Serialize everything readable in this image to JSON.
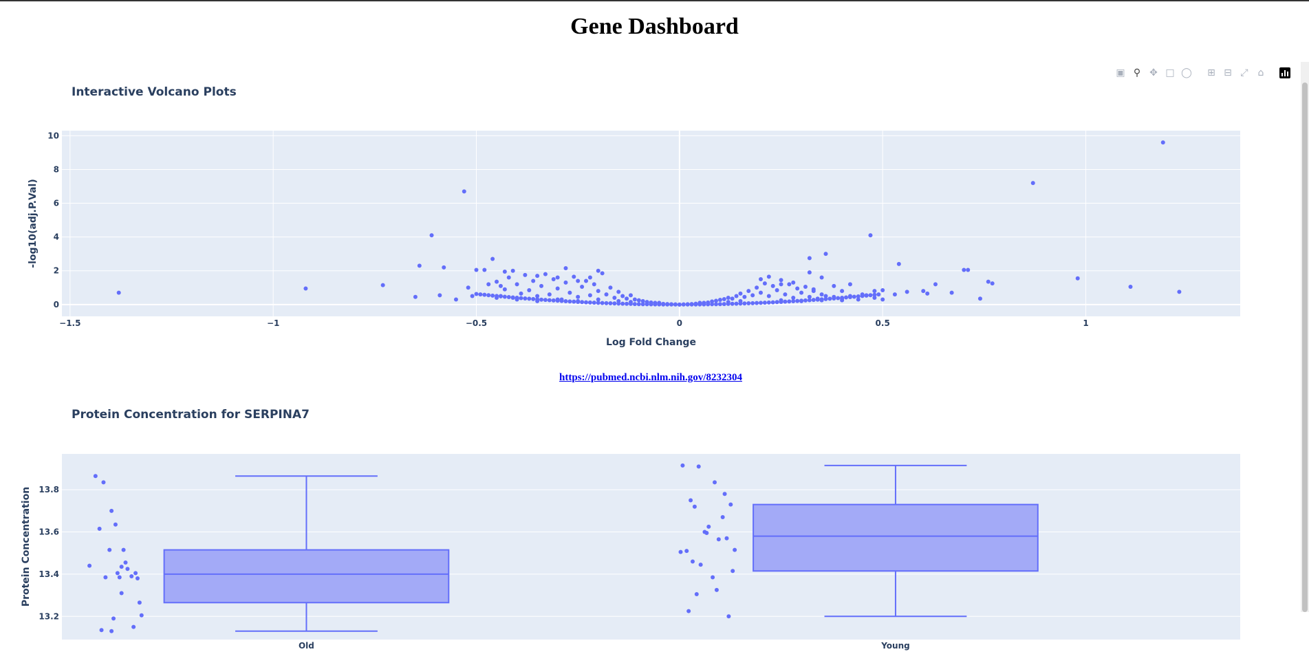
{
  "page": {
    "title": "Gene Dashboard",
    "link": "https://pubmed.ncbi.nlm.nih.gov/8232304"
  },
  "modebar": {
    "icons": [
      "camera-icon",
      "zoom-icon",
      "pan-icon",
      "box-select-icon",
      "lasso-icon",
      "zoom-in-icon",
      "zoom-out-icon",
      "autoscale-icon",
      "reset-axes-icon",
      "plotly-logo-icon"
    ]
  },
  "colors": {
    "marker": "#636efa",
    "plot_bg": "#e5ecf6",
    "box_fill": "#a3aaf7",
    "text": "#2a3f5f"
  },
  "chart_data": [
    {
      "type": "scatter",
      "title": "Interactive Volcano Plots",
      "xlabel": "Log Fold Change",
      "ylabel": "-log10(adj.P.Val)",
      "xlim": [
        -1.52,
        1.38
      ],
      "ylim": [
        -0.7,
        10.3
      ],
      "xticks": [
        -1.5,
        -1,
        -0.5,
        0,
        0.5,
        1
      ],
      "xtick_labels": [
        "−1.5",
        "−1",
        "−0.5",
        "0",
        "0.5",
        "1"
      ],
      "yticks": [
        0,
        2,
        4,
        6,
        8,
        10
      ],
      "ytick_labels": [
        "0",
        "2",
        "4",
        "6",
        "8",
        "10"
      ],
      "grid": true,
      "x": [
        -1.38,
        -0.92,
        -0.73,
        -0.65,
        -0.64,
        -0.61,
        -0.59,
        -0.58,
        -0.55,
        -0.53,
        -0.52,
        -0.51,
        -0.5,
        -0.48,
        -0.47,
        -0.46,
        -0.45,
        -0.44,
        -0.43,
        -0.41,
        -0.4,
        -0.35,
        -0.3,
        -0.28,
        -0.25,
        -0.22,
        -0.2,
        0.2,
        0.22,
        0.25,
        0.28,
        0.32,
        0.32,
        0.33,
        0.35,
        0.36,
        0.38,
        0.4,
        0.42,
        0.45,
        0.47,
        0.48,
        0.5,
        0.53,
        0.54,
        0.56,
        0.6,
        0.61,
        0.63,
        0.67,
        0.7,
        0.71,
        0.74,
        0.76,
        0.77,
        0.87,
        0.98,
        1.11,
        1.19,
        1.23
      ],
      "y": [
        0.7,
        0.95,
        1.15,
        0.45,
        2.3,
        4.1,
        0.55,
        2.2,
        0.3,
        6.7,
        1.0,
        0.5,
        2.05,
        2.05,
        1.2,
        2.7,
        0.4,
        1.1,
        1.95,
        2.0,
        0.35,
        1.7,
        1.6,
        2.15,
        1.4,
        1.6,
        2.0,
        1.5,
        1.65,
        1.2,
        1.3,
        2.75,
        1.9,
        0.9,
        1.6,
        3.0,
        1.1,
        0.8,
        1.2,
        0.6,
        4.1,
        0.8,
        0.85,
        0.6,
        2.4,
        0.75,
        0.8,
        0.65,
        1.2,
        0.7,
        2.05,
        2.05,
        0.35,
        1.35,
        1.25,
        7.2,
        1.55,
        1.05,
        9.6,
        0.75
      ],
      "cloud": {
        "points": [
          [
            -0.45,
            1.35
          ],
          [
            -0.44,
            0.5
          ],
          [
            -0.43,
            0.9
          ],
          [
            -0.42,
            1.6
          ],
          [
            -0.41,
            0.4
          ],
          [
            -0.4,
            1.2
          ],
          [
            -0.39,
            0.65
          ],
          [
            -0.38,
            1.75
          ],
          [
            -0.37,
            0.85
          ],
          [
            -0.36,
            1.4
          ],
          [
            -0.35,
            0.5
          ],
          [
            -0.34,
            1.1
          ],
          [
            -0.33,
            1.8
          ],
          [
            -0.32,
            0.6
          ],
          [
            -0.31,
            1.5
          ],
          [
            -0.3,
            0.95
          ],
          [
            -0.29,
            0.3
          ],
          [
            -0.28,
            1.3
          ],
          [
            -0.27,
            0.7
          ],
          [
            -0.26,
            1.65
          ],
          [
            -0.25,
            0.45
          ],
          [
            -0.24,
            1.05
          ],
          [
            -0.23,
            1.4
          ],
          [
            -0.22,
            0.55
          ],
          [
            -0.21,
            1.2
          ],
          [
            -0.2,
            0.8
          ],
          [
            -0.19,
            1.85
          ],
          [
            -0.18,
            0.6
          ],
          [
            -0.17,
            1.0
          ],
          [
            -0.16,
            0.4
          ],
          [
            -0.15,
            0.75
          ],
          [
            -0.14,
            0.5
          ],
          [
            -0.13,
            0.35
          ],
          [
            -0.12,
            0.55
          ],
          [
            -0.11,
            0.3
          ],
          [
            -0.1,
            0.25
          ],
          [
            -0.09,
            0.2
          ],
          [
            -0.08,
            0.15
          ],
          [
            -0.07,
            0.12
          ],
          [
            -0.06,
            0.1
          ],
          [
            -0.05,
            0.06
          ],
          [
            -0.04,
            0.04
          ],
          [
            -0.03,
            0.03
          ],
          [
            -0.02,
            0.02
          ],
          [
            -0.01,
            0.01
          ],
          [
            0,
            0
          ],
          [
            0.01,
            0.01
          ],
          [
            0.02,
            0.02
          ],
          [
            0.03,
            0.03
          ],
          [
            0.04,
            0.05
          ],
          [
            0.05,
            0.07
          ],
          [
            0.06,
            0.1
          ],
          [
            0.07,
            0.12
          ],
          [
            0.08,
            0.18
          ],
          [
            0.09,
            0.22
          ],
          [
            0.1,
            0.28
          ],
          [
            0.11,
            0.32
          ],
          [
            0.12,
            0.4
          ],
          [
            0.13,
            0.35
          ],
          [
            0.14,
            0.5
          ],
          [
            0.15,
            0.65
          ],
          [
            0.16,
            0.45
          ],
          [
            0.17,
            0.8
          ],
          [
            0.18,
            0.55
          ],
          [
            0.19,
            1.0
          ],
          [
            0.2,
            0.7
          ],
          [
            0.21,
            1.25
          ],
          [
            0.22,
            0.5
          ],
          [
            0.23,
            1.1
          ],
          [
            0.24,
            0.85
          ],
          [
            0.25,
            1.45
          ],
          [
            0.26,
            0.6
          ],
          [
            0.27,
            1.2
          ],
          [
            0.28,
            0.4
          ],
          [
            0.29,
            0.95
          ],
          [
            0.3,
            0.7
          ],
          [
            0.31,
            1.05
          ],
          [
            0.32,
            0.45
          ],
          [
            0.33,
            0.8
          ],
          [
            0.34,
            0.35
          ],
          [
            0.35,
            0.6
          ],
          [
            0.36,
            0.5
          ],
          [
            0.38,
            0.45
          ],
          [
            0.4,
            0.35
          ],
          [
            0.42,
            0.5
          ],
          [
            0.44,
            0.3
          ],
          [
            0.46,
            0.55
          ],
          [
            0.48,
            0.4
          ],
          [
            0.5,
            0.3
          ],
          [
            -0.2,
            0.3
          ],
          [
            -0.3,
            0.3
          ],
          [
            -0.35,
            0.2
          ],
          [
            -0.25,
            0.2
          ],
          [
            -0.15,
            0.2
          ],
          [
            0.15,
            0.2
          ],
          [
            0.25,
            0.25
          ],
          [
            0.3,
            0.2
          ],
          [
            0.35,
            0.25
          ],
          [
            -0.4,
            0.3
          ],
          [
            0.4,
            0.25
          ],
          [
            -0.05,
            0.1
          ],
          [
            0.05,
            0.1
          ],
          [
            -0.12,
            0.15
          ],
          [
            0.12,
            0.15
          ]
        ]
      }
    },
    {
      "type": "box",
      "title": "Protein Concentration for SERPINA7",
      "xlabel": "",
      "ylabel": "Protein Concentration",
      "categories": [
        "Old",
        "Young"
      ],
      "ylim": [
        13.09,
        13.97
      ],
      "yticks": [
        13.2,
        13.4,
        13.6,
        13.8
      ],
      "ytick_labels": [
        "13.2",
        "13.4",
        "13.6",
        "13.8"
      ],
      "grid": true,
      "boxes": [
        {
          "name": "Old",
          "min": 13.13,
          "q1": 13.265,
          "median": 13.4,
          "q3": 13.515,
          "max": 13.865
        },
        {
          "name": "Young",
          "min": 13.2,
          "q1": 13.415,
          "median": 13.58,
          "q3": 13.73,
          "max": 13.915
        }
      ],
      "points": [
        {
          "name": "Old",
          "x": [
            0.05,
            0.09,
            0.13,
            0.07,
            0.15,
            0.19,
            0.12,
            0.2,
            0.02,
            0.18,
            0.16,
            0.23,
            0.26,
            0.1,
            0.18,
            0.27,
            0.28,
            0.14,
            0.24,
            0.08,
            0.13,
            0.25,
            0.17,
            0.21
          ],
          "y": [
            13.865,
            13.835,
            13.7,
            13.615,
            13.635,
            13.515,
            13.515,
            13.455,
            13.44,
            13.435,
            13.405,
            13.39,
            13.38,
            13.385,
            13.31,
            13.265,
            13.205,
            13.19,
            13.15,
            13.135,
            13.13,
            13.405,
            13.385,
            13.425
          ]
        },
        {
          "name": "Young",
          "x": [
            0.04,
            0.12,
            0.08,
            0.2,
            0.25,
            0.1,
            0.17,
            0.28,
            0.15,
            0.26,
            0.06,
            0.3,
            0.24,
            0.13,
            0.29,
            0.07,
            0.19,
            0.21,
            0.11,
            0.27,
            0.03,
            0.16,
            0.22,
            0.09
          ],
          "y": [
            13.915,
            13.91,
            13.75,
            13.835,
            13.78,
            13.72,
            13.625,
            13.73,
            13.6,
            13.57,
            13.51,
            13.515,
            13.67,
            13.445,
            13.415,
            13.225,
            13.385,
            13.325,
            13.305,
            13.2,
            13.505,
            13.595,
            13.565,
            13.46
          ]
        }
      ]
    }
  ]
}
